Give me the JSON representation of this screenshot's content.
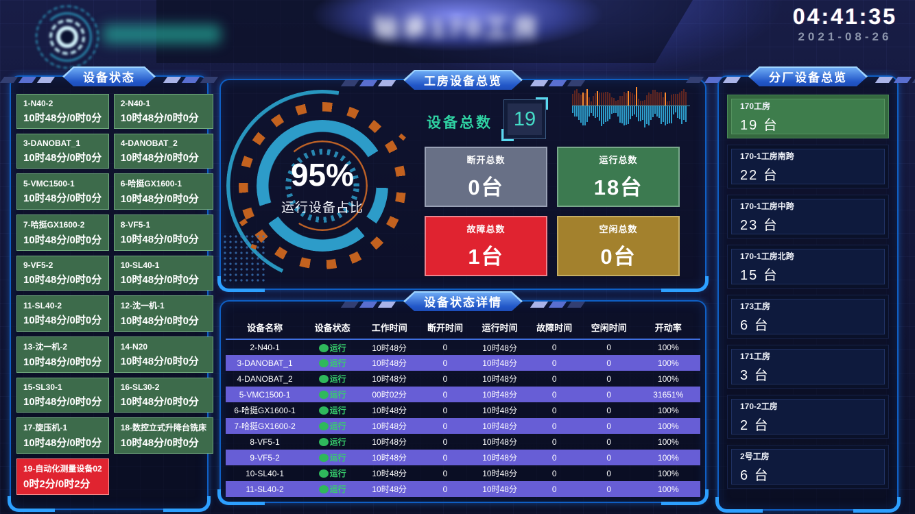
{
  "header": {
    "title": "轴承170工房",
    "clock_time": "04:41:35",
    "clock_date": "2021-08-26"
  },
  "left_panel": {
    "title": "设备状态",
    "devices": [
      {
        "name": "1-N40-2",
        "time": "10时48分/0时0分",
        "status": "running"
      },
      {
        "name": "2-N40-1",
        "time": "10时48分/0时0分",
        "status": "running"
      },
      {
        "name": "3-DANOBAT_1",
        "time": "10时48分/0时0分",
        "status": "running"
      },
      {
        "name": "4-DANOBAT_2",
        "time": "10时48分/0时0分",
        "status": "running"
      },
      {
        "name": "5-VMC1500-1",
        "time": "10时48分/0时0分",
        "status": "running"
      },
      {
        "name": "6-哈挺GX1600-1",
        "time": "10时48分/0时0分",
        "status": "running"
      },
      {
        "name": "7-哈挺GX1600-2",
        "time": "10时48分/0时0分",
        "status": "running"
      },
      {
        "name": "8-VF5-1",
        "time": "10时48分/0时0分",
        "status": "running"
      },
      {
        "name": "9-VF5-2",
        "time": "10时48分/0时0分",
        "status": "running"
      },
      {
        "name": "10-SL40-1",
        "time": "10时48分/0时0分",
        "status": "running"
      },
      {
        "name": "11-SL40-2",
        "time": "10时48分/0时0分",
        "status": "running"
      },
      {
        "name": "12-沈一机-1",
        "time": "10时48分/0时0分",
        "status": "running"
      },
      {
        "name": "13-沈一机-2",
        "time": "10时48分/0时0分",
        "status": "running"
      },
      {
        "name": "14-N20",
        "time": "10时48分/0时0分",
        "status": "running"
      },
      {
        "name": "15-SL30-1",
        "time": "10时48分/0时0分",
        "status": "running"
      },
      {
        "name": "16-SL30-2",
        "time": "10时48分/0时0分",
        "status": "running"
      },
      {
        "name": "17-旋压机-1",
        "time": "10时48分/0时0分",
        "status": "running"
      },
      {
        "name": "18-数控立式升降台铣床",
        "time": "10时48分/0时0分",
        "status": "running"
      },
      {
        "name": "19-自动化测量设备02",
        "time": "0时2分/0时2分",
        "status": "fault"
      }
    ]
  },
  "overview_panel": {
    "title": "工房设备总览",
    "gauge": {
      "value": "95%",
      "label": "运行设备占比"
    },
    "total": {
      "label": "设备总数",
      "value": "19"
    },
    "stats": [
      {
        "label": "断开总数",
        "value": "0台",
        "type": "offline"
      },
      {
        "label": "运行总数",
        "value": "18台",
        "type": "running"
      },
      {
        "label": "故障总数",
        "value": "1台",
        "type": "fault"
      },
      {
        "label": "空闲总数",
        "value": "0台",
        "type": "idle"
      }
    ]
  },
  "detail_panel": {
    "title": "设备状态详情",
    "columns": [
      "设备名称",
      "设备状态",
      "工作时间",
      "断开时间",
      "运行时间",
      "故障时间",
      "空闲时间",
      "开动率"
    ],
    "status_running_label": "运行",
    "rows": [
      [
        "2-N40-1",
        "运行",
        "10时48分",
        "0",
        "10时48分",
        "0",
        "0",
        "100%"
      ],
      [
        "3-DANOBAT_1",
        "运行",
        "10时48分",
        "0",
        "10时48分",
        "0",
        "0",
        "100%"
      ],
      [
        "4-DANOBAT_2",
        "运行",
        "10时48分",
        "0",
        "10时48分",
        "0",
        "0",
        "100%"
      ],
      [
        "5-VMC1500-1",
        "运行",
        "00时02分",
        "0",
        "10时48分",
        "0",
        "0",
        "31651%"
      ],
      [
        "6-哈挺GX1600-1",
        "运行",
        "10时48分",
        "0",
        "10时48分",
        "0",
        "0",
        "100%"
      ],
      [
        "7-哈挺GX1600-2",
        "运行",
        "10时48分",
        "0",
        "10时48分",
        "0",
        "0",
        "100%"
      ],
      [
        "8-VF5-1",
        "运行",
        "10时48分",
        "0",
        "10时48分",
        "0",
        "0",
        "100%"
      ],
      [
        "9-VF5-2",
        "运行",
        "10时48分",
        "0",
        "10时48分",
        "0",
        "0",
        "100%"
      ],
      [
        "10-SL40-1",
        "运行",
        "10时48分",
        "0",
        "10时48分",
        "0",
        "0",
        "100%"
      ],
      [
        "11-SL40-2",
        "运行",
        "10时48分",
        "0",
        "10时48分",
        "0",
        "0",
        "100%"
      ]
    ]
  },
  "right_panel": {
    "title": "分厂设备总览",
    "workshops": [
      {
        "name": "170工房",
        "count": "19 台",
        "highlight": true
      },
      {
        "name": "170-1工房南跨",
        "count": "22 台",
        "highlight": false
      },
      {
        "name": "170-1工房中跨",
        "count": "23 台",
        "highlight": false
      },
      {
        "name": "170-1工房北跨",
        "count": "15 台",
        "highlight": false
      },
      {
        "name": "173工房",
        "count": "6 台",
        "highlight": false
      },
      {
        "name": "171工房",
        "count": "3 台",
        "highlight": false
      },
      {
        "name": "170-2工房",
        "count": "2 台",
        "highlight": false
      },
      {
        "name": "2号工房",
        "count": "6 台",
        "highlight": false
      }
    ]
  },
  "colors": {
    "accent_blue": "#2da0ff",
    "running_green": "#3d6b4b",
    "fault_red": "#e02430",
    "idle_gold": "#a3812d",
    "offline_gray": "#687086",
    "row_purple": "#675ed6",
    "teal": "#2d9cc9",
    "total_teal": "#2fd3a3"
  }
}
